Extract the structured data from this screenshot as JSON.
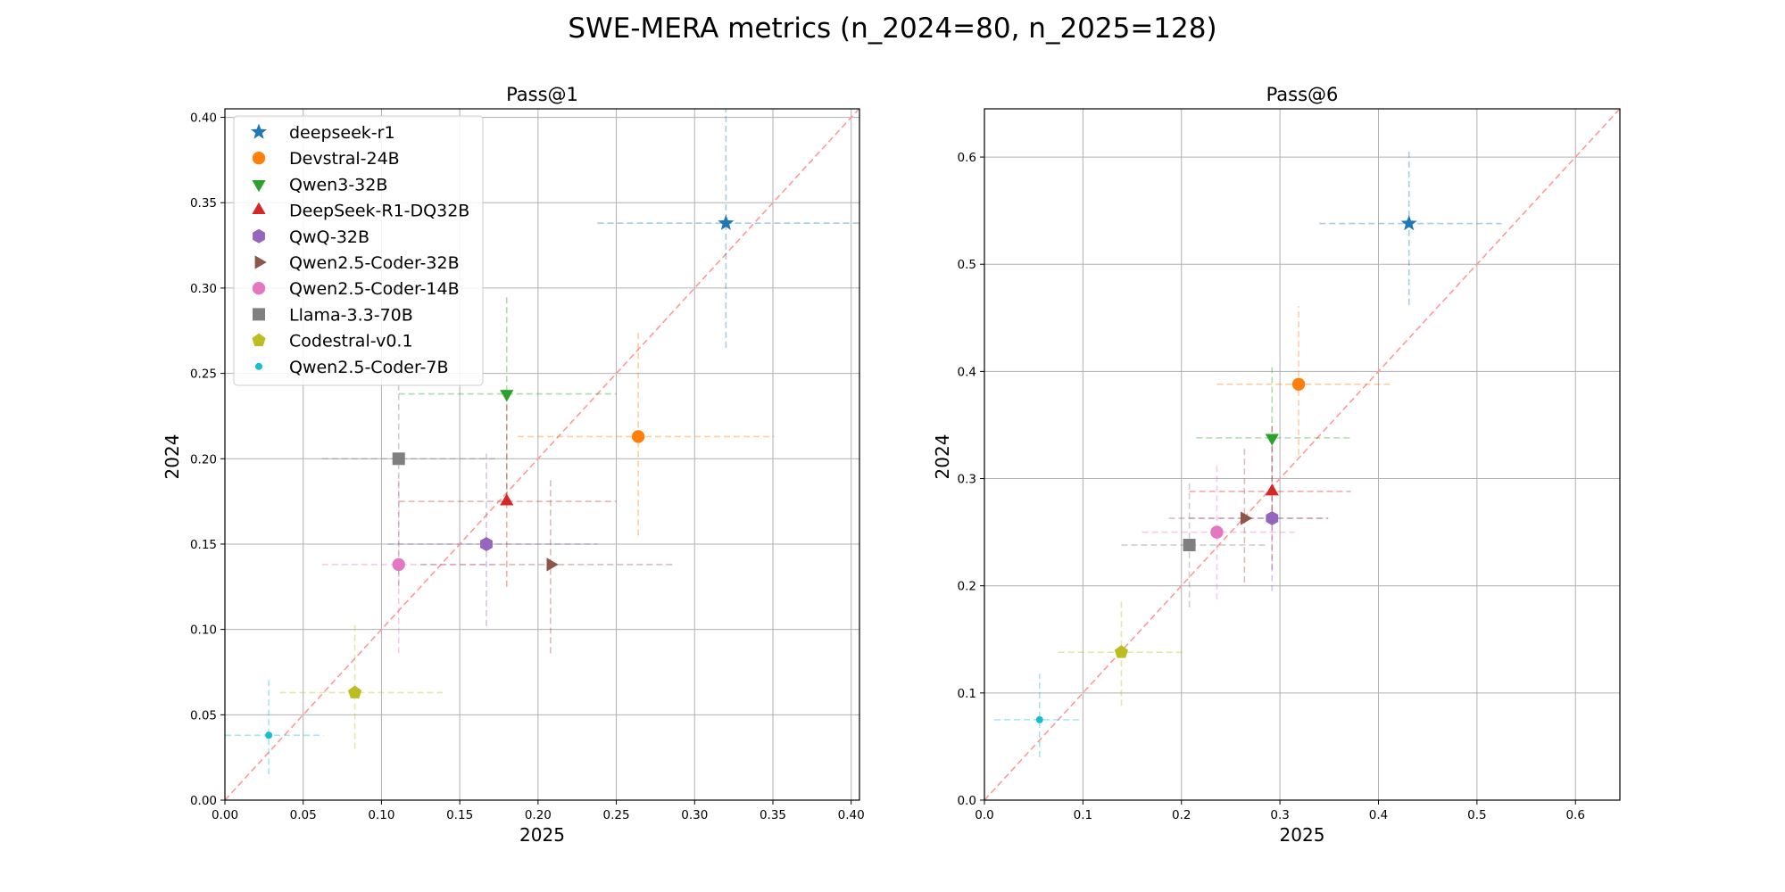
{
  "chart_data": {
    "title": "SWE-MERA metrics (n_2024=80, n_2025=128)",
    "colors": {
      "deepseek-r1": "#1f77b4",
      "Devstral-24B": "#ff7f0e",
      "Qwen3-32B": "#2ca02c",
      "DeepSeek-R1-DQ32B": "#d62728",
      "QwQ-32B": "#9467bd",
      "Qwen2.5-Coder-32B": "#8c564b",
      "Qwen2.5-Coder-14B": "#e377c2",
      "Llama-3.3-70B": "#7f7f7f",
      "Codestral-v0.1": "#bcbd22",
      "Qwen2.5-Coder-7B": "#17becf",
      "diagonal": "#ff9999",
      "grid": "#b0b0b0"
    },
    "legend": {
      "placement": "top-left of Pass@1 panel",
      "entries": [
        {
          "name": "deepseek-r1",
          "marker": "star"
        },
        {
          "name": "Devstral-24B",
          "marker": "circle"
        },
        {
          "name": "Qwen3-32B",
          "marker": "triangle-down"
        },
        {
          "name": "DeepSeek-R1-DQ32B",
          "marker": "triangle-up"
        },
        {
          "name": "QwQ-32B",
          "marker": "hexagon"
        },
        {
          "name": "Qwen2.5-Coder-32B",
          "marker": "triangle-right"
        },
        {
          "name": "Qwen2.5-Coder-14B",
          "marker": "circle"
        },
        {
          "name": "Llama-3.3-70B",
          "marker": "square"
        },
        {
          "name": "Codestral-v0.1",
          "marker": "pentagon"
        },
        {
          "name": "Qwen2.5-Coder-7B",
          "marker": "small-circle"
        }
      ]
    },
    "panels": [
      {
        "type": "scatter",
        "title": "Pass@1",
        "xlabel": "2025",
        "ylabel": "2024",
        "xlim": [
          0,
          0.4053
        ],
        "ylim": [
          0,
          0.405
        ],
        "xticks": [
          0.0,
          0.05,
          0.1,
          0.15,
          0.2,
          0.25,
          0.3,
          0.35,
          0.4
        ],
        "yticks": [
          0.0,
          0.05,
          0.1,
          0.15,
          0.2,
          0.25,
          0.3,
          0.35,
          0.4
        ],
        "tick_decimals": 2,
        "grid": true,
        "diagonal": true,
        "points": [
          {
            "name": "deepseek-r1",
            "x": 0.32,
            "y": 0.338,
            "xerr": [
              0.238,
              0.405
            ],
            "yerr": [
              0.265,
              0.405
            ]
          },
          {
            "name": "Devstral-24B",
            "x": 0.264,
            "y": 0.213,
            "xerr": [
              0.187,
              0.351
            ],
            "yerr": [
              0.155,
              0.275
            ]
          },
          {
            "name": "Qwen3-32B",
            "x": 0.18,
            "y": 0.238,
            "xerr": [
              0.111,
              0.25
            ],
            "yerr": [
              0.176,
              0.296
            ]
          },
          {
            "name": "DeepSeek-R1-DQ32B",
            "x": 0.18,
            "y": 0.175,
            "xerr": [
              0.111,
              0.25
            ],
            "yerr": [
              0.125,
              0.238
            ]
          },
          {
            "name": "QwQ-32B",
            "x": 0.167,
            "y": 0.15,
            "xerr": [
              0.104,
              0.238
            ],
            "yerr": [
              0.102,
              0.203
            ]
          },
          {
            "name": "Qwen2.5-Coder-32B",
            "x": 0.208,
            "y": 0.138,
            "xerr": [
              0.125,
              0.288
            ],
            "yerr": [
              0.086,
              0.188
            ]
          },
          {
            "name": "Qwen2.5-Coder-14B",
            "x": 0.111,
            "y": 0.138,
            "xerr": [
              0.062,
              0.175
            ],
            "yerr": [
              0.086,
              0.19
            ]
          },
          {
            "name": "Llama-3.3-70B",
            "x": 0.111,
            "y": 0.2,
            "xerr": [
              0.062,
              0.175
            ],
            "yerr": [
              0.125,
              0.275
            ]
          },
          {
            "name": "Codestral-v0.1",
            "x": 0.083,
            "y": 0.063,
            "xerr": [
              0.035,
              0.139
            ],
            "yerr": [
              0.03,
              0.103
            ]
          },
          {
            "name": "Qwen2.5-Coder-7B",
            "x": 0.028,
            "y": 0.038,
            "xerr": [
              0.0,
              0.063
            ],
            "yerr": [
              0.015,
              0.071
            ]
          }
        ]
      },
      {
        "type": "scatter",
        "title": "Pass@6",
        "xlabel": "2025",
        "ylabel": "2024",
        "xlim": [
          0,
          0.6451
        ],
        "ylim": [
          0,
          0.645
        ],
        "xticks": [
          0.0,
          0.1,
          0.2,
          0.3,
          0.4,
          0.5,
          0.6
        ],
        "yticks": [
          0.0,
          0.1,
          0.2,
          0.3,
          0.4,
          0.5,
          0.6
        ],
        "tick_decimals": 1,
        "grid": true,
        "diagonal": true,
        "points": [
          {
            "name": "deepseek-r1",
            "x": 0.431,
            "y": 0.538,
            "xerr": [
              0.34,
              0.525
            ],
            "yerr": [
              0.462,
              0.607
            ]
          },
          {
            "name": "Devstral-24B",
            "x": 0.319,
            "y": 0.388,
            "xerr": [
              0.236,
              0.413
            ],
            "yerr": [
              0.322,
              0.461
            ]
          },
          {
            "name": "Qwen3-32B",
            "x": 0.292,
            "y": 0.338,
            "xerr": [
              0.215,
              0.372
            ],
            "yerr": [
              0.27,
              0.407
            ]
          },
          {
            "name": "DeepSeek-R1-DQ32B",
            "x": 0.292,
            "y": 0.288,
            "xerr": [
              0.208,
              0.372
            ],
            "yerr": [
              0.215,
              0.353
            ]
          },
          {
            "name": "QwQ-32B",
            "x": 0.292,
            "y": 0.263,
            "xerr": [
              0.208,
              0.349
            ],
            "yerr": [
              0.195,
              0.337
            ]
          },
          {
            "name": "Qwen2.5-Coder-32B",
            "x": 0.264,
            "y": 0.263,
            "xerr": [
              0.187,
              0.349
            ],
            "yerr": [
              0.203,
              0.329
            ]
          },
          {
            "name": "Qwen2.5-Coder-14B",
            "x": 0.236,
            "y": 0.25,
            "xerr": [
              0.16,
              0.315
            ],
            "yerr": [
              0.187,
              0.313
            ]
          },
          {
            "name": "Llama-3.3-70B",
            "x": 0.208,
            "y": 0.238,
            "xerr": [
              0.139,
              0.288
            ],
            "yerr": [
              0.18,
              0.296
            ]
          },
          {
            "name": "Codestral-v0.1",
            "x": 0.139,
            "y": 0.138,
            "xerr": [
              0.075,
              0.201
            ],
            "yerr": [
              0.088,
              0.188
            ]
          },
          {
            "name": "Qwen2.5-Coder-7B",
            "x": 0.056,
            "y": 0.075,
            "xerr": [
              0.01,
              0.1
            ],
            "yerr": [
              0.04,
              0.118
            ]
          }
        ]
      }
    ]
  }
}
